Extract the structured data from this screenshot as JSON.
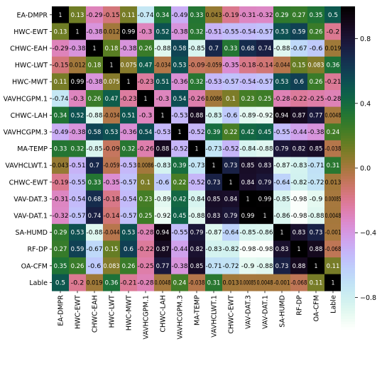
{
  "chart_data": {
    "type": "heatmap",
    "title": "",
    "labels": [
      "EA-DMPR",
      "HWC-EWT",
      "CHWC-EAH",
      "HWC-LWT",
      "HWC-MWT",
      "VAVHCGPM.1",
      "CHWC-LAH",
      "VAVHCGPM.3",
      "MA-TEMP",
      "VAVHCLWT.1",
      "CHWC-EWT",
      "VAV-DAT.3",
      "VAV-DAT.1",
      "SA-HUMD",
      "RF-DP",
      "OA-CFM",
      "Lable"
    ],
    "matrix": [
      [
        "1",
        "0.13",
        "-0.29",
        "-0.15",
        "0.11",
        "-0.74",
        "0.34",
        "-0.49",
        "0.33",
        "0.043",
        "-0.19",
        "-0.31",
        "-0.32",
        "0.29",
        "0.27",
        "0.35",
        "0.5"
      ],
      [
        "0.13",
        "1",
        "-0.38",
        "0.012",
        "0.99",
        "-0.3",
        "0.52",
        "-0.38",
        "0.32",
        "-0.51",
        "-0.55",
        "-0.54",
        "-0.57",
        "0.53",
        "0.59",
        "0.26",
        "-0.2"
      ],
      [
        "-0.29",
        "-0.38",
        "1",
        "0.18",
        "-0.38",
        "0.26",
        "-0.88",
        "0.58",
        "-0.85",
        "0.7",
        "0.33",
        "0.68",
        "0.74",
        "-0.88",
        "-0.67",
        "-0.6",
        "0.019"
      ],
      [
        "-0.15",
        "0.012",
        "0.18",
        "1",
        "0.075",
        "0.47",
        "-0.034",
        "0.53",
        "-0.09",
        "-0.059",
        "-0.35",
        "-0.18",
        "-0.14",
        "-0.044",
        "0.15",
        "0.083",
        "0.36"
      ],
      [
        "0.11",
        "0.99",
        "-0.38",
        "0.075",
        "1",
        "-0.23",
        "0.51",
        "-0.36",
        "0.32",
        "-0.53",
        "-0.57",
        "-0.54",
        "-0.57",
        "0.53",
        "0.6",
        "0.26",
        "-0.21"
      ],
      [
        "-0.74",
        "-0.3",
        "0.26",
        "0.47",
        "-0.23",
        "1",
        "-0.3",
        "0.54",
        "-0.26",
        "0.0086",
        "0.1",
        "0.23",
        "0.25",
        "-0.28",
        "-0.22",
        "-0.25",
        "-0.28"
      ],
      [
        "0.34",
        "0.52",
        "-0.88",
        "-0.034",
        "0.51",
        "-0.3",
        "1",
        "-0.53",
        "0.88",
        "-0.83",
        "-0.6",
        "-0.89",
        "-0.92",
        "0.94",
        "0.87",
        "0.77",
        "0.0048"
      ],
      [
        "-0.49",
        "-0.38",
        "0.58",
        "0.53",
        "-0.36",
        "0.54",
        "-0.53",
        "1",
        "-0.52",
        "0.39",
        "0.22",
        "0.42",
        "0.45",
        "-0.55",
        "-0.44",
        "-0.38",
        "0.24"
      ],
      [
        "0.33",
        "0.32",
        "-0.85",
        "-0.09",
        "0.32",
        "-0.26",
        "0.88",
        "-0.52",
        "1",
        "-0.73",
        "-0.52",
        "-0.84",
        "-0.88",
        "0.79",
        "0.82",
        "0.85",
        "-0.038"
      ],
      [
        "0.043",
        "-0.51",
        "0.7",
        "-0.059",
        "-0.53",
        "0.0086",
        "-0.83",
        "0.39",
        "-0.73",
        "1",
        "0.73",
        "0.85",
        "0.83",
        "-0.87",
        "-0.83",
        "-0.71",
        "0.31"
      ],
      [
        "-0.19",
        "-0.55",
        "0.33",
        "-0.35",
        "-0.57",
        "0.1",
        "-0.6",
        "0.22",
        "-0.52",
        "0.73",
        "1",
        "0.84",
        "0.79",
        "-0.64",
        "-0.82",
        "-0.72",
        "0.013"
      ],
      [
        "-0.31",
        "-0.54",
        "0.68",
        "-0.18",
        "-0.54",
        "0.23",
        "-0.89",
        "0.42",
        "-0.84",
        "0.85",
        "0.84",
        "1",
        "0.99",
        "-0.85",
        "-0.98",
        "-0.9",
        "0.00085"
      ],
      [
        "-0.32",
        "-0.57",
        "0.74",
        "-0.14",
        "-0.57",
        "0.25",
        "-0.92",
        "0.45",
        "-0.88",
        "0.83",
        "0.79",
        "0.99",
        "1",
        "-0.86",
        "-0.98",
        "-0.88",
        "0.0048"
      ],
      [
        "0.29",
        "0.53",
        "-0.88",
        "-0.044",
        "0.53",
        "-0.28",
        "0.94",
        "-0.55",
        "0.79",
        "-0.87",
        "-0.64",
        "-0.85",
        "-0.86",
        "1",
        "0.83",
        "0.73",
        "-0.001"
      ],
      [
        "0.27",
        "0.59",
        "-0.67",
        "0.15",
        "0.6",
        "-0.22",
        "0.87",
        "-0.44",
        "0.82",
        "-0.83",
        "-0.82",
        "-0.98",
        "-0.98",
        "0.83",
        "1",
        "0.88",
        "-0.068"
      ],
      [
        "0.35",
        "0.26",
        "-0.6",
        "0.083",
        "0.26",
        "-0.25",
        "0.77",
        "-0.38",
        "0.85",
        "-0.71",
        "-0.72",
        "-0.9",
        "-0.88",
        "0.73",
        "0.88",
        "1",
        "0.11"
      ],
      [
        "0.5",
        "-0.2",
        "0.019",
        "0.36",
        "-0.21",
        "-0.28",
        "0.0048",
        "0.24",
        "-0.038",
        "0.31",
        "0.013",
        "0.00085",
        "0.0048",
        "-0.001",
        "-0.068",
        "0.11",
        "1"
      ]
    ],
    "colorscale": "cubehelix",
    "colorbar": {
      "range": [
        -1,
        1
      ],
      "ticks": [
        "0.8",
        "0.4",
        "0.0",
        "−0.4",
        "−0.8"
      ]
    },
    "xlabel": "",
    "ylabel": "",
    "grid": false
  }
}
